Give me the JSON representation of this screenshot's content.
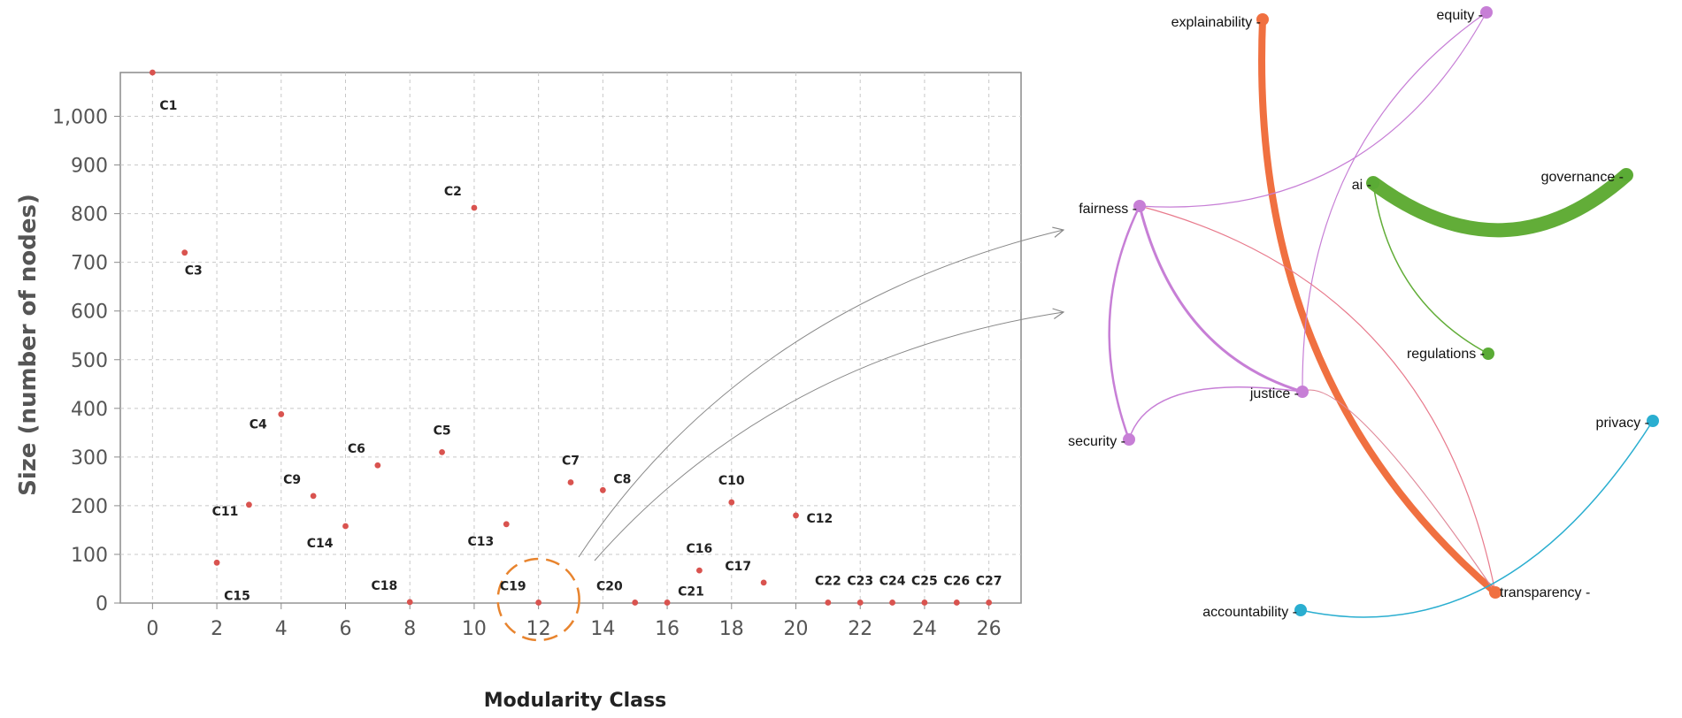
{
  "chart_data": [
    {
      "type": "scatter",
      "title": "",
      "xlabel": "Modularity Class",
      "ylabel": "Size (number of nodes)",
      "xlim": [
        -1,
        27
      ],
      "ylim": [
        0,
        1090
      ],
      "xticks": [
        0,
        2,
        4,
        6,
        8,
        10,
        12,
        14,
        16,
        18,
        20,
        22,
        24,
        26
      ],
      "yticks": [
        0,
        100,
        200,
        300,
        400,
        500,
        600,
        700,
        800,
        900,
        1000
      ],
      "ytick_labels": [
        "0",
        "100",
        "200",
        "300",
        "400",
        "500",
        "600",
        "700",
        "800",
        "900",
        "1,000"
      ],
      "grid": true,
      "point_color": "#d9534f",
      "highlight": {
        "x": 12,
        "label": "C19",
        "color": "#e8842e"
      },
      "points": [
        {
          "x": 0,
          "y": 1090,
          "label": "C1",
          "lpos": "br"
        },
        {
          "x": 1,
          "y": 720,
          "label": "C3",
          "lpos": "below"
        },
        {
          "x": 2,
          "y": 83,
          "label": "C15",
          "lpos": "br"
        },
        {
          "x": 3,
          "y": 202,
          "label": "C11",
          "lpos": "left"
        },
        {
          "x": 4,
          "y": 388,
          "label": "C4",
          "lpos": "bl"
        },
        {
          "x": 5,
          "y": 220,
          "label": "C9",
          "lpos": "above-left"
        },
        {
          "x": 6,
          "y": 158,
          "label": "C14",
          "lpos": "below-left"
        },
        {
          "x": 7,
          "y": 283,
          "label": "C6",
          "lpos": "above-left"
        },
        {
          "x": 8,
          "y": 2,
          "label": "C18",
          "lpos": "above-left"
        },
        {
          "x": 9,
          "y": 310,
          "label": "C5",
          "lpos": "above"
        },
        {
          "x": 10,
          "y": 812,
          "label": "C2",
          "lpos": "above-left"
        },
        {
          "x": 11,
          "y": 162,
          "label": "C13",
          "lpos": "below-left"
        },
        {
          "x": 12,
          "y": 1,
          "label": "C19",
          "lpos": "above-left"
        },
        {
          "x": 13,
          "y": 248,
          "label": "C7",
          "lpos": "above"
        },
        {
          "x": 14,
          "y": 232,
          "label": "C8",
          "lpos": "ar"
        },
        {
          "x": 15,
          "y": 1,
          "label": "C20",
          "lpos": "above-left"
        },
        {
          "x": 16,
          "y": 1,
          "label": "C21",
          "lpos": "ar"
        },
        {
          "x": 17,
          "y": 67,
          "label": "C16",
          "lpos": "above"
        },
        {
          "x": 18,
          "y": 207,
          "label": "C10",
          "lpos": "above"
        },
        {
          "x": 19,
          "y": 42,
          "label": "C17",
          "lpos": "above-left"
        },
        {
          "x": 20,
          "y": 180,
          "label": "C12",
          "lpos": "right"
        },
        {
          "x": 21,
          "y": 1,
          "label": "C22",
          "lpos": "above"
        },
        {
          "x": 22,
          "y": 1,
          "label": "C23",
          "lpos": "above"
        },
        {
          "x": 23,
          "y": 1,
          "label": "C24",
          "lpos": "above"
        },
        {
          "x": 24,
          "y": 1,
          "label": "C25",
          "lpos": "above"
        },
        {
          "x": 25,
          "y": 1,
          "label": "C26",
          "lpos": "above"
        },
        {
          "x": 26,
          "y": 1,
          "label": "C27",
          "lpos": "above"
        }
      ]
    },
    {
      "type": "network",
      "title": "",
      "nodes": [
        {
          "id": "explainability",
          "label": "explainability -",
          "color": "#f07040"
        },
        {
          "id": "equity",
          "label": "equity -",
          "color": "#c77fd6"
        },
        {
          "id": "fairness",
          "label": "fairness -",
          "color": "#c77fd6"
        },
        {
          "id": "ai",
          "label": "ai -",
          "color": "#5aab35"
        },
        {
          "id": "governance",
          "label": "governance -",
          "color": "#5aab35"
        },
        {
          "id": "regulations",
          "label": "regulations -",
          "color": "#5aab35"
        },
        {
          "id": "justice",
          "label": "justice -",
          "color": "#c77fd6"
        },
        {
          "id": "security",
          "label": "security -",
          "color": "#c77fd6"
        },
        {
          "id": "privacy",
          "label": "privacy -",
          "color": "#2aaed0"
        },
        {
          "id": "accountability",
          "label": "accountability -",
          "color": "#2aaed0"
        },
        {
          "id": "transparency",
          "label": "transparency -",
          "color": "#f07040"
        }
      ],
      "edges": [
        {
          "source": "ai",
          "target": "governance",
          "weight": 16,
          "color": "#62ad38"
        },
        {
          "source": "explainability",
          "target": "transparency",
          "weight": 8,
          "color": "#f07040"
        },
        {
          "source": "ai",
          "target": "regulations",
          "weight": 1.5,
          "color": "#62ad38"
        },
        {
          "source": "fairness",
          "target": "justice",
          "weight": 3,
          "color": "#c77fd6"
        },
        {
          "source": "fairness",
          "target": "security",
          "weight": 2.5,
          "color": "#c77fd6"
        },
        {
          "source": "security",
          "target": "justice",
          "weight": 1.5,
          "color": "#c77fd6"
        },
        {
          "source": "fairness",
          "target": "equity",
          "weight": 1.2,
          "color": "#c77fd6"
        },
        {
          "source": "equity",
          "target": "justice",
          "weight": 1.2,
          "color": "#c77fd6"
        },
        {
          "source": "fairness",
          "target": "transparency",
          "weight": 1.2,
          "color": "#e87a8c"
        },
        {
          "source": "justice",
          "target": "transparency",
          "weight": 1.2,
          "color": "#e08a9a"
        },
        {
          "source": "privacy",
          "target": "accountability",
          "weight": 1.5,
          "color": "#2aaed0"
        }
      ]
    }
  ]
}
